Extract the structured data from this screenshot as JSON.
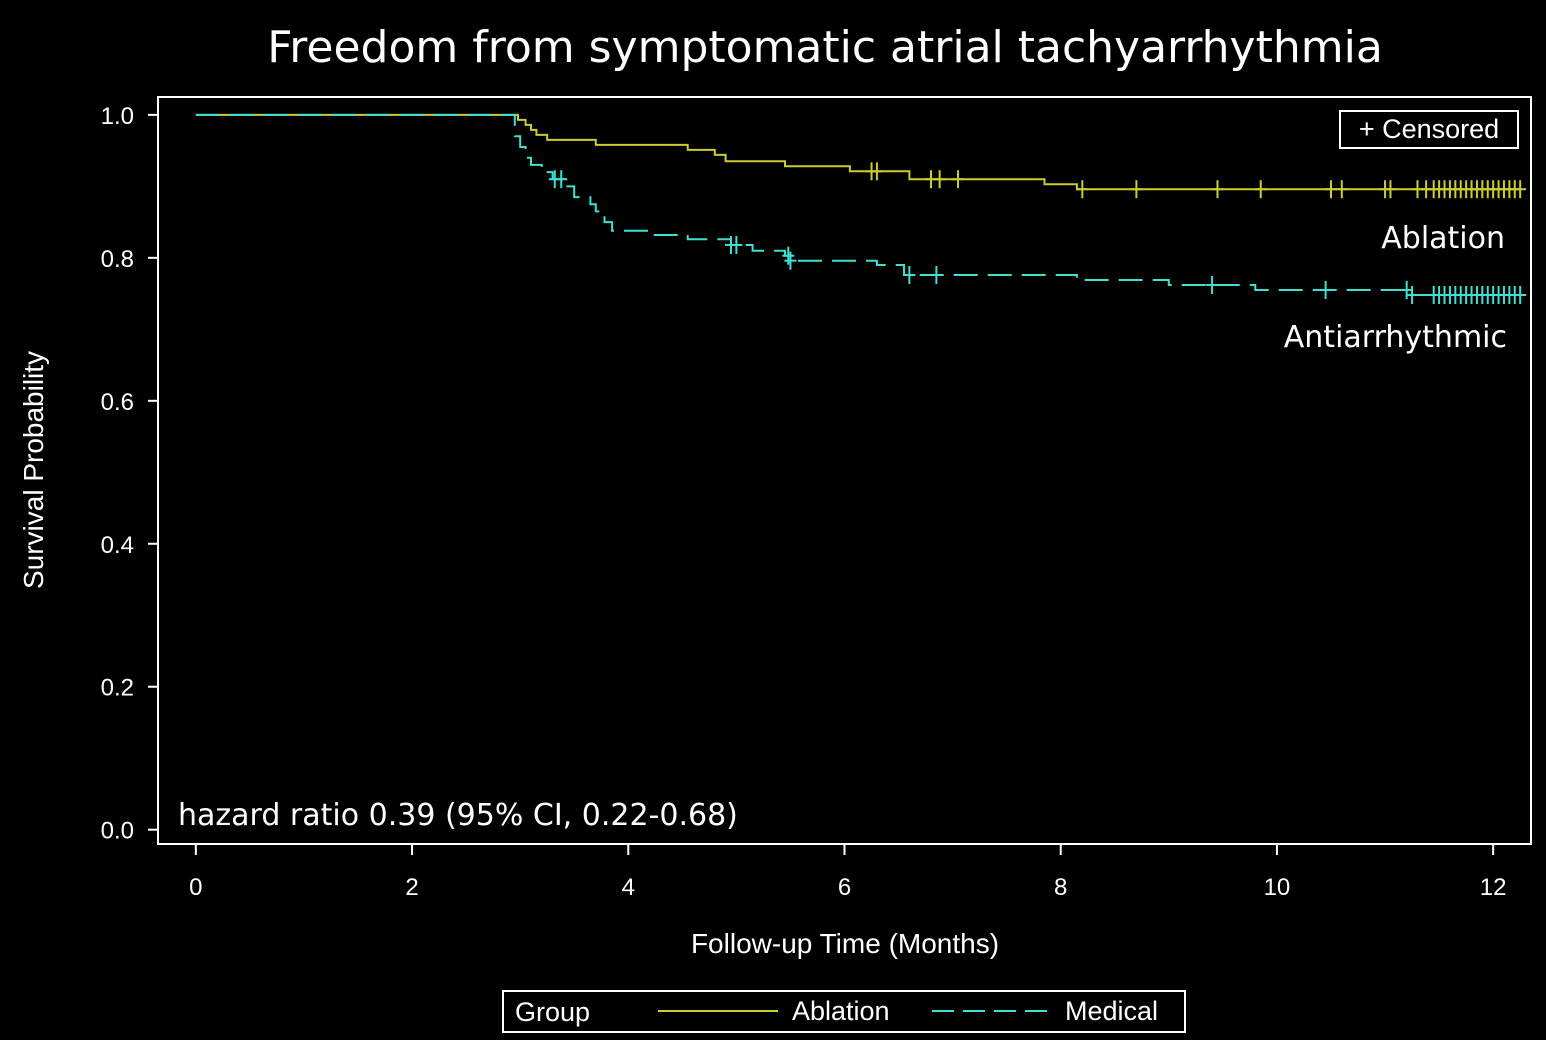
{
  "chart_data": {
    "type": "line",
    "title": "Freedom from symptomatic atrial tachyarrhythmia",
    "xlabel": "Follow-up Time (Months)",
    "ylabel": "Survival Probability",
    "xlim": [
      -0.35,
      12.35
    ],
    "ylim": [
      -0.02,
      1.025
    ],
    "xticks": [
      "0",
      "2",
      "4",
      "6",
      "8",
      "10",
      "12"
    ],
    "yticks": [
      "0.0",
      "0.2",
      "0.4",
      "0.6",
      "0.8",
      "1.0"
    ],
    "grid": false,
    "censored_legend": "+ Censored",
    "annotation": "hazard ratio 0.39 (95% CI, 0.22-0.68)",
    "legend": {
      "title": "Group",
      "placement": "bottom",
      "items": [
        "Ablation",
        "Medical"
      ]
    },
    "series": [
      {
        "name": "Ablation",
        "end_label": "Ablation",
        "color": "#cccc33",
        "style": "solid",
        "steps": [
          [
            0,
            1.0
          ],
          [
            2.98,
            0.993
          ],
          [
            3.05,
            0.986
          ],
          [
            3.1,
            0.979
          ],
          [
            3.15,
            0.972
          ],
          [
            3.25,
            0.965
          ],
          [
            3.7,
            0.958
          ],
          [
            4.55,
            0.951
          ],
          [
            4.8,
            0.944
          ],
          [
            4.9,
            0.935
          ],
          [
            5.45,
            0.928
          ],
          [
            6.05,
            0.921
          ],
          [
            6.6,
            0.91
          ],
          [
            7.85,
            0.903
          ],
          [
            8.15,
            0.896
          ]
        ],
        "censor_times": [
          6.25,
          6.3,
          6.8,
          6.88,
          7.05,
          8.2,
          8.7,
          9.45,
          9.85,
          10.5,
          10.6,
          11.0,
          11.05,
          11.3,
          11.38,
          11.45,
          11.5,
          11.55,
          11.6,
          11.65,
          11.7,
          11.75,
          11.8,
          11.85,
          11.9,
          11.95,
          12.0,
          12.05,
          12.1,
          12.15,
          12.2,
          12.25
        ]
      },
      {
        "name": "Medical",
        "end_label": "Antiarrhythmic",
        "color": "#40e0d0",
        "style": "dashed",
        "steps": [
          [
            0,
            1.0
          ],
          [
            2.95,
            0.97
          ],
          [
            3.0,
            0.955
          ],
          [
            3.05,
            0.94
          ],
          [
            3.1,
            0.93
          ],
          [
            3.2,
            0.92
          ],
          [
            3.3,
            0.91
          ],
          [
            3.42,
            0.9
          ],
          [
            3.5,
            0.885
          ],
          [
            3.65,
            0.875
          ],
          [
            3.7,
            0.865
          ],
          [
            3.78,
            0.85
          ],
          [
            3.85,
            0.838
          ],
          [
            4.2,
            0.832
          ],
          [
            4.55,
            0.826
          ],
          [
            4.95,
            0.818
          ],
          [
            5.15,
            0.81
          ],
          [
            5.45,
            0.803
          ],
          [
            5.5,
            0.796
          ],
          [
            6.3,
            0.79
          ],
          [
            6.55,
            0.776
          ],
          [
            8.15,
            0.769
          ],
          [
            9.0,
            0.762
          ],
          [
            9.8,
            0.755
          ],
          [
            11.25,
            0.748
          ]
        ],
        "censor_times": [
          3.32,
          3.38,
          4.95,
          5.0,
          5.48,
          5.5,
          6.6,
          6.85,
          9.4,
          10.45,
          11.2,
          11.25,
          11.45,
          11.5,
          11.55,
          11.6,
          11.65,
          11.7,
          11.75,
          11.8,
          11.85,
          11.9,
          11.95,
          12.0,
          12.05,
          12.1,
          12.15,
          12.2,
          12.25
        ]
      }
    ]
  }
}
